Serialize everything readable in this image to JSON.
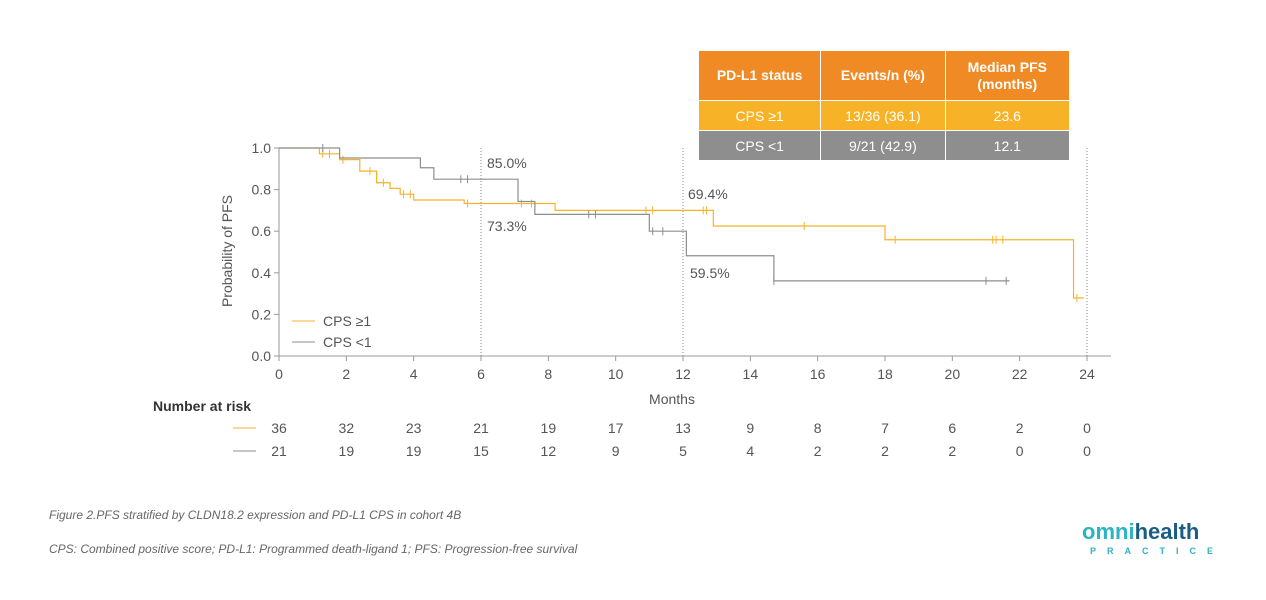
{
  "summary_table": {
    "headers": [
      "PD-L1 status",
      "Events/n (%)",
      "Median PFS\n(months)"
    ],
    "rows": [
      [
        "CPS ≥1",
        "13/36 (36.1)",
        "23.6"
      ],
      [
        "CPS <1",
        "9/21 (42.9)",
        "12.1"
      ]
    ],
    "colors": {
      "header": "#f08a24",
      "row_1": "#f8b228",
      "row_2": "#8e8e8e"
    }
  },
  "chart_data": {
    "type": "line",
    "subtype": "kaplan-meier step",
    "xlabel": "Months",
    "ylabel": "Probability of PFS",
    "xlim": [
      0,
      24
    ],
    "ylim": [
      0,
      1.0
    ],
    "xticks": [
      "0",
      "2",
      "4",
      "6",
      "8",
      "10",
      "12",
      "14",
      "16",
      "18",
      "20",
      "22",
      "24"
    ],
    "yticks": [
      "0.0",
      "0.2",
      "0.4",
      "0.6",
      "0.8",
      "1.0"
    ],
    "grid": false,
    "reference_lines_x": [
      6,
      12
    ],
    "legend_position": "bottom-left",
    "series": [
      {
        "name": "CPS ≥1",
        "color": "#f8b228",
        "steps": [
          [
            0,
            1.0
          ],
          [
            1.2,
            0.972
          ],
          [
            1.8,
            0.944
          ],
          [
            2.4,
            0.889
          ],
          [
            2.9,
            0.833
          ],
          [
            3.3,
            0.806
          ],
          [
            3.6,
            0.778
          ],
          [
            4.0,
            0.75
          ],
          [
            5.5,
            0.733
          ],
          [
            8.2,
            0.7
          ],
          [
            12.9,
            0.625
          ],
          [
            18.0,
            0.559
          ],
          [
            23.6,
            0.279
          ]
        ],
        "end_x": 23.9,
        "censors": [
          [
            1.3,
            0.972
          ],
          [
            1.5,
            0.972
          ],
          [
            1.9,
            0.944
          ],
          [
            2.7,
            0.889
          ],
          [
            3.1,
            0.833
          ],
          [
            3.7,
            0.778
          ],
          [
            3.9,
            0.778
          ],
          [
            5.6,
            0.733
          ],
          [
            7.2,
            0.733
          ],
          [
            7.5,
            0.733
          ],
          [
            10.9,
            0.7
          ],
          [
            11.1,
            0.7
          ],
          [
            12.6,
            0.7
          ],
          [
            12.7,
            0.7
          ],
          [
            15.6,
            0.625
          ],
          [
            18.3,
            0.559
          ],
          [
            21.2,
            0.559
          ],
          [
            21.3,
            0.559
          ],
          [
            21.5,
            0.559
          ],
          [
            23.7,
            0.279
          ]
        ]
      },
      {
        "name": "CPS <1",
        "color": "#8e8e8e",
        "steps": [
          [
            0,
            1.0
          ],
          [
            1.8,
            0.952
          ],
          [
            4.2,
            0.905
          ],
          [
            4.6,
            0.85
          ],
          [
            7.1,
            0.743
          ],
          [
            7.6,
            0.681
          ],
          [
            11.0,
            0.6
          ],
          [
            12.1,
            0.482
          ],
          [
            14.7,
            0.361
          ]
        ],
        "end_x": 21.7,
        "censors": [
          [
            1.3,
            1.0
          ],
          [
            5.4,
            0.85
          ],
          [
            5.6,
            0.85
          ],
          [
            9.2,
            0.681
          ],
          [
            9.4,
            0.681
          ],
          [
            11.1,
            0.6
          ],
          [
            11.4,
            0.6
          ],
          [
            14.7,
            0.361
          ],
          [
            21.0,
            0.361
          ],
          [
            21.6,
            0.361
          ]
        ]
      }
    ],
    "annotations": [
      "85.0%",
      "73.3%",
      "69.4%",
      "59.5%"
    ],
    "risk_table": {
      "title": "Number at risk",
      "times": [
        0,
        2,
        4,
        6,
        8,
        10,
        12,
        14,
        16,
        18,
        20,
        22,
        24
      ],
      "rows": [
        {
          "series": "CPS ≥1",
          "values": [
            36,
            32,
            23,
            21,
            19,
            17,
            13,
            9,
            8,
            7,
            6,
            2,
            0
          ]
        },
        {
          "series": "CPS <1",
          "values": [
            21,
            19,
            19,
            15,
            12,
            9,
            5,
            4,
            2,
            2,
            2,
            0,
            0
          ]
        }
      ]
    }
  },
  "captions": {
    "figure": "Figure 2.PFS stratified by CLDN18.2 expression and PD-L1 CPS in cohort 4B",
    "abbreviations": "CPS: Combined positive score; PD-L1: Programmed death-ligand 1; PFS: Progression-free survival"
  },
  "brand": {
    "logo_text_1": "omni",
    "logo_text_2": "health",
    "logo_sub": "PRACTICE"
  }
}
